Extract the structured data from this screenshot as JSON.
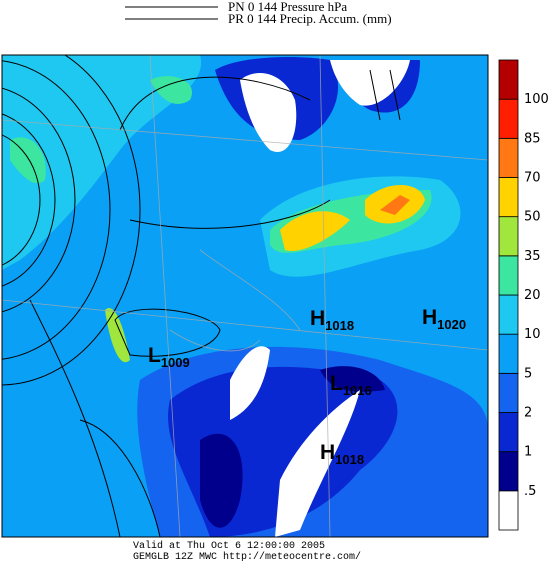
{
  "legend_lines": [
    "PN 0 144 Pressure hPa",
    "PR 0 144 Precip. Accum. (mm)"
  ],
  "colorbar": {
    "labels": [
      ".5",
      "1",
      "2",
      "5",
      "10",
      "20",
      "35",
      "50",
      "70",
      "85",
      "100"
    ],
    "colors": [
      "#ffffff",
      "#00008c",
      "#0a28d2",
      "#1464f0",
      "#0aa0f5",
      "#1ec8f0",
      "#3ce6a0",
      "#a0e63c",
      "#ffd200",
      "#ff7814",
      "#ff1e00",
      "#b40000"
    ]
  },
  "centers": [
    {
      "letter": "H",
      "value": "1018"
    },
    {
      "letter": "H",
      "value": "1020"
    },
    {
      "letter": "L",
      "value": "1009"
    },
    {
      "letter": "L",
      "value": "1016"
    },
    {
      "letter": "H",
      "value": "1018"
    }
  ],
  "footer": [
    "Valid at Thu Oct  6 12:00:00 2005",
    "GEMGLB 12Z MWC http://meteocentre.com/"
  ]
}
